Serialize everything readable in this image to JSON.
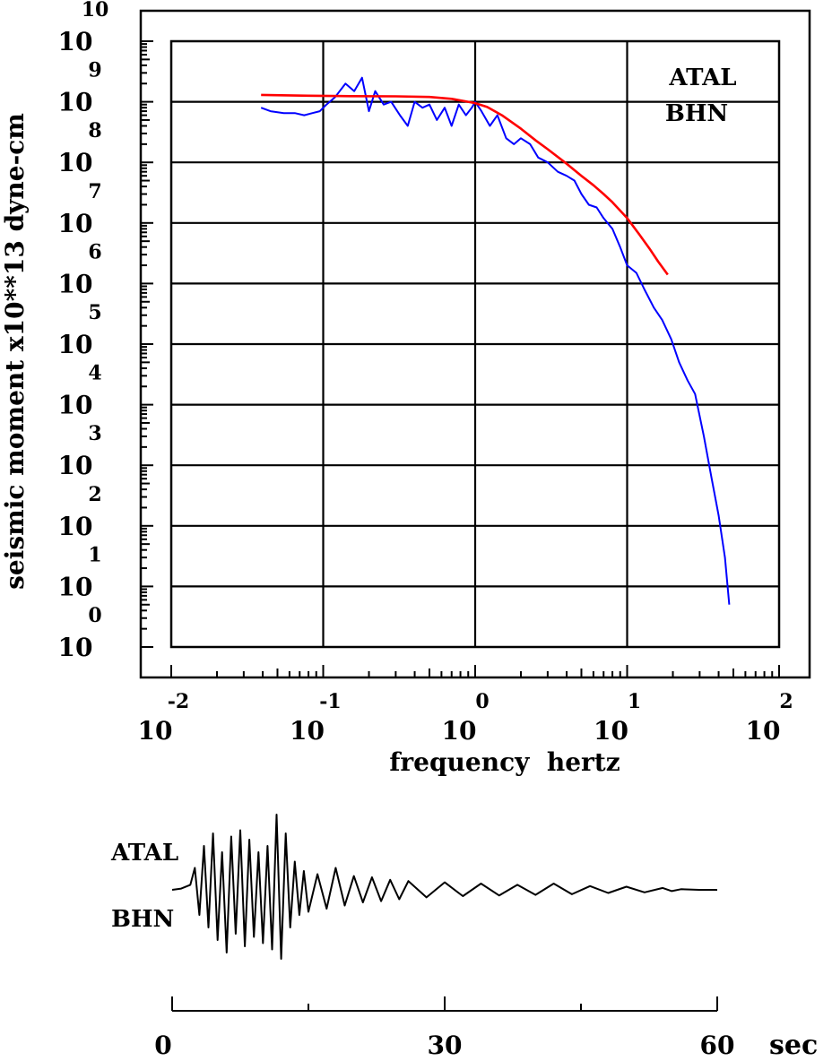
{
  "chart_data": [
    {
      "type": "line",
      "station": "ATAL",
      "component": "BHN",
      "xlabel": "frequency  hertz",
      "ylabel": "seismic moment x10**13 dyne-cm",
      "x_scale": "log",
      "y_scale": "log",
      "xlim": [
        0.01,
        100
      ],
      "ylim": [
        1,
        10000000000
      ],
      "x_ticks": [
        {
          "base": "10",
          "exp": "-2",
          "value": 0.01
        },
        {
          "base": "10",
          "exp": "-1",
          "value": 0.1
        },
        {
          "base": "10",
          "exp": "0",
          "value": 1
        },
        {
          "base": "10",
          "exp": "1",
          "value": 10
        },
        {
          "base": "10",
          "exp": "2",
          "value": 100
        }
      ],
      "y_ticks": [
        {
          "base": "10",
          "exp": "0",
          "value": 1
        },
        {
          "base": "10",
          "exp": "1",
          "value": 10
        },
        {
          "base": "10",
          "exp": "2",
          "value": 100
        },
        {
          "base": "10",
          "exp": "3",
          "value": 1000
        },
        {
          "base": "10",
          "exp": "4",
          "value": 10000
        },
        {
          "base": "10",
          "exp": "5",
          "value": 100000
        },
        {
          "base": "10",
          "exp": "6",
          "value": 1000000
        },
        {
          "base": "10",
          "exp": "7",
          "value": 10000000
        },
        {
          "base": "10",
          "exp": "8",
          "value": 100000000
        },
        {
          "base": "10",
          "exp": "9",
          "value": 1000000000
        },
        {
          "base": "10",
          "exp": "10",
          "value": 10000000000
        }
      ],
      "grid": true,
      "series": [
        {
          "color": "#0000ff",
          "x": [
            0.039,
            0.045,
            0.055,
            0.065,
            0.075,
            0.085,
            0.095,
            0.105,
            0.12,
            0.14,
            0.16,
            0.18,
            0.2,
            0.22,
            0.25,
            0.28,
            0.32,
            0.36,
            0.4,
            0.45,
            0.5,
            0.56,
            0.63,
            0.7,
            0.78,
            0.87,
            0.95,
            1.0,
            1.1,
            1.25,
            1.4,
            1.6,
            1.8,
            2.0,
            2.3,
            2.6,
            3.0,
            3.5,
            4.0,
            4.5,
            5.0,
            5.6,
            6.3,
            7.0,
            8.0,
            9.0,
            10.0,
            11.5,
            13.0,
            15.0,
            17.0,
            19.5,
            22.0,
            25.0,
            28.0,
            32.0,
            36.0,
            40.0,
            44.0,
            47.0
          ],
          "y": [
            800000000,
            700000000,
            650000000,
            650000000,
            600000000,
            650000000,
            700000000,
            900000000,
            1200000000,
            2000000000,
            1500000000,
            2500000000,
            700000000,
            1500000000,
            900000000,
            1000000000,
            600000000,
            400000000,
            1000000000,
            800000000,
            900000000,
            500000000,
            800000000,
            400000000,
            900000000,
            600000000,
            800000000,
            1000000000,
            700000000,
            400000000,
            600000000,
            250000000,
            200000000,
            250000000,
            200000000,
            120000000,
            100000000,
            70000000,
            60000000,
            50000000,
            30000000,
            20000000,
            18000000,
            12000000,
            8000000,
            4000000,
            2000000,
            1500000,
            800000,
            400000,
            250000,
            120000,
            50000,
            25000,
            15000,
            3000,
            600,
            150,
            30,
            5
          ]
        },
        {
          "color": "#ff0000",
          "x": [
            0.039,
            0.08,
            0.15,
            0.3,
            0.5,
            0.7,
            0.9,
            1.0,
            1.2,
            1.5,
            2.0,
            2.5,
            3.0,
            4.0,
            5.0,
            6.0,
            7.0,
            8.0,
            10.0,
            12.0,
            14.0,
            16.0,
            18.5
          ],
          "y": [
            1300000000,
            1260000000,
            1240000000,
            1230000000,
            1200000000,
            1120000000,
            1000000000,
            950000000,
            820000000,
            600000000,
            360000000,
            230000000,
            165000000,
            95000000,
            60000000,
            42000000,
            30000000,
            22000000,
            12000000,
            6500000,
            3800000,
            2300000,
            1400000
          ]
        }
      ]
    },
    {
      "type": "line",
      "station": "ATAL",
      "component": "BHN",
      "x_unit": "sec",
      "xlim": [
        0,
        60
      ],
      "x_ticks": [
        "0",
        "30",
        "60"
      ],
      "series": [
        {
          "color": "#000000",
          "x": [
            0,
            1,
            2,
            2.5,
            3,
            3.5,
            4,
            4.5,
            5,
            5.5,
            6,
            6.5,
            7,
            7.5,
            8,
            8.5,
            9,
            9.5,
            10,
            10.5,
            11,
            11.5,
            12,
            12.5,
            13,
            13.5,
            14,
            14.5,
            15,
            16,
            17,
            18,
            19,
            20,
            21,
            22,
            23,
            24,
            25,
            26,
            28,
            30,
            32,
            34,
            36,
            38,
            40,
            42,
            44,
            46,
            48,
            50,
            52,
            54,
            55,
            56,
            58,
            60
          ],
          "y": [
            0,
            0.02,
            0.08,
            0.35,
            -0.4,
            0.7,
            -0.6,
            0.9,
            -0.8,
            0.6,
            -1.0,
            0.85,
            -0.7,
            0.95,
            -0.9,
            0.8,
            -0.75,
            0.6,
            -0.85,
            0.7,
            -0.95,
            1.2,
            -1.1,
            0.9,
            -0.6,
            0.45,
            -0.4,
            0.3,
            -0.35,
            0.25,
            -0.3,
            0.35,
            -0.25,
            0.22,
            -0.2,
            0.2,
            -0.18,
            0.16,
            -0.15,
            0.14,
            -0.12,
            0.12,
            -0.1,
            0.1,
            -0.09,
            0.08,
            -0.08,
            0.1,
            -0.07,
            0.06,
            -0.05,
            0.05,
            -0.04,
            0.03,
            -0.02,
            0.01,
            0,
            0
          ]
        }
      ]
    }
  ]
}
